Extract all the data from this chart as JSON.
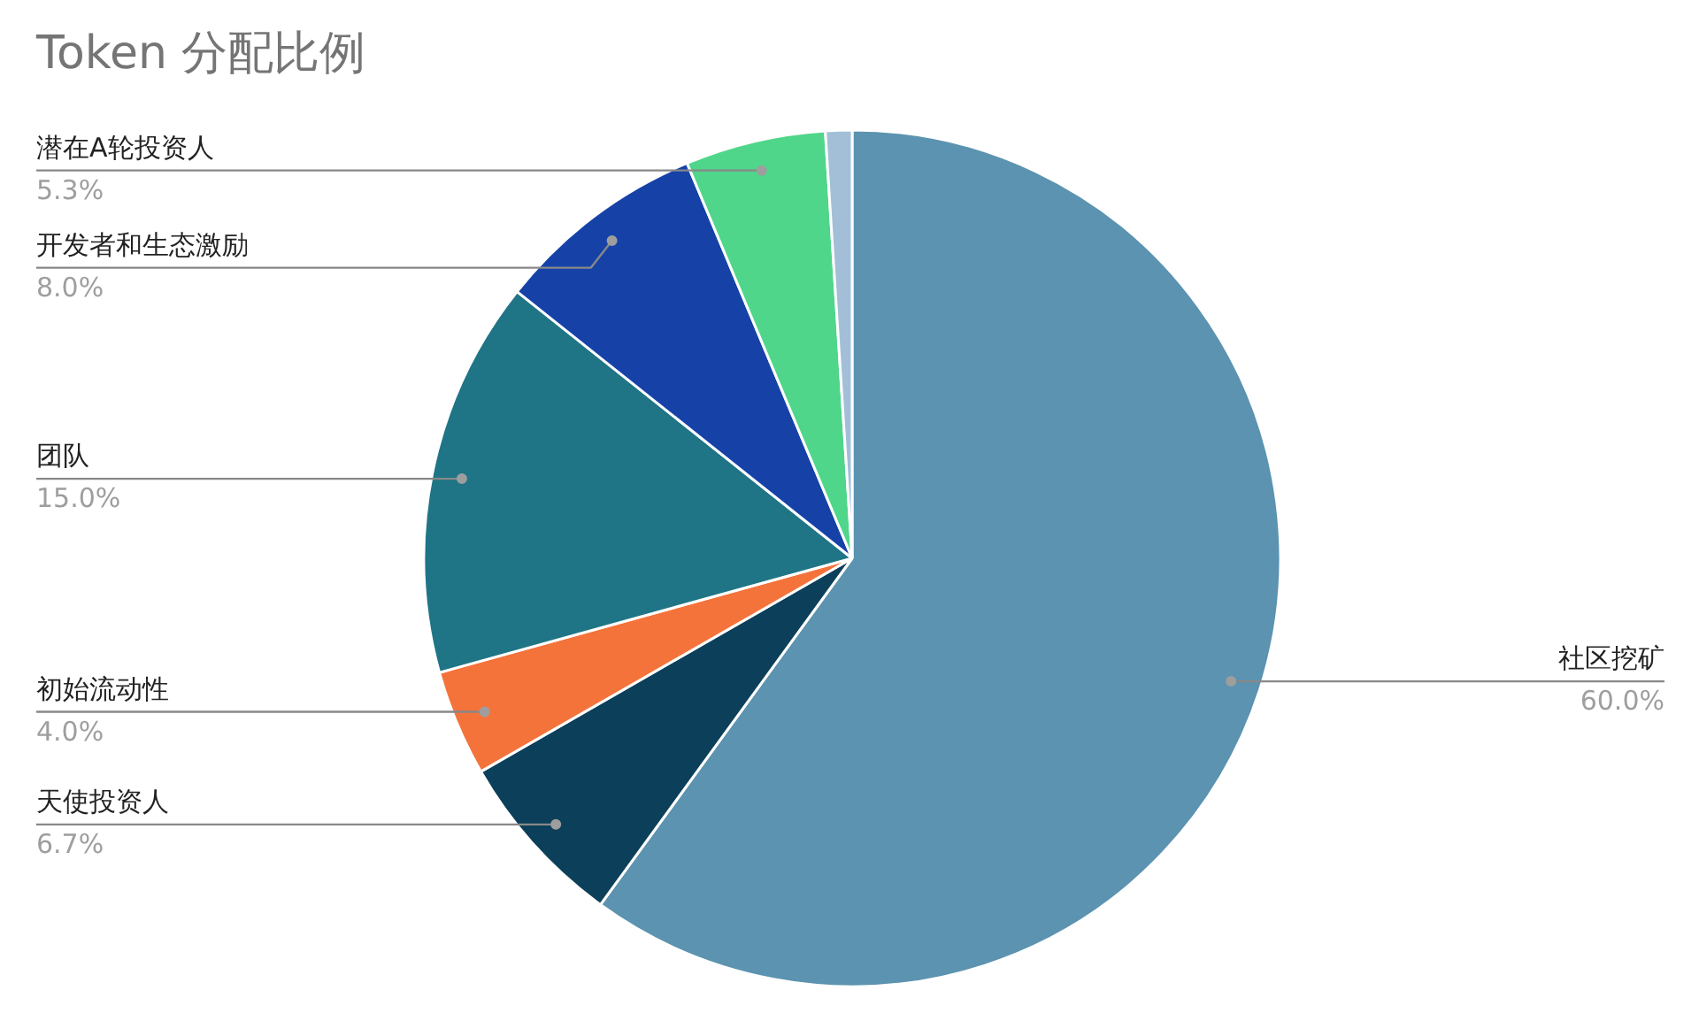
{
  "chart_data": {
    "type": "pie",
    "title": "Token 分配比例",
    "categories": [
      "社区挖矿",
      "天使投资人",
      "初始流动性",
      "团队",
      "开发者和生态激励",
      "潜在A轮投资人",
      null
    ],
    "values": [
      60.0,
      6.7,
      4.0,
      15.0,
      8.0,
      5.3,
      1.0
    ],
    "colors": [
      "#5b93b0",
      "#0c3f5a",
      "#f4733a",
      "#1f7585",
      "#1642a8",
      "#4fd68a",
      "#a3bfd8"
    ],
    "value_labels": [
      "60.0%",
      "6.7%",
      "4.0%",
      "15.0%",
      "8.0%",
      "5.3%",
      null
    ]
  }
}
